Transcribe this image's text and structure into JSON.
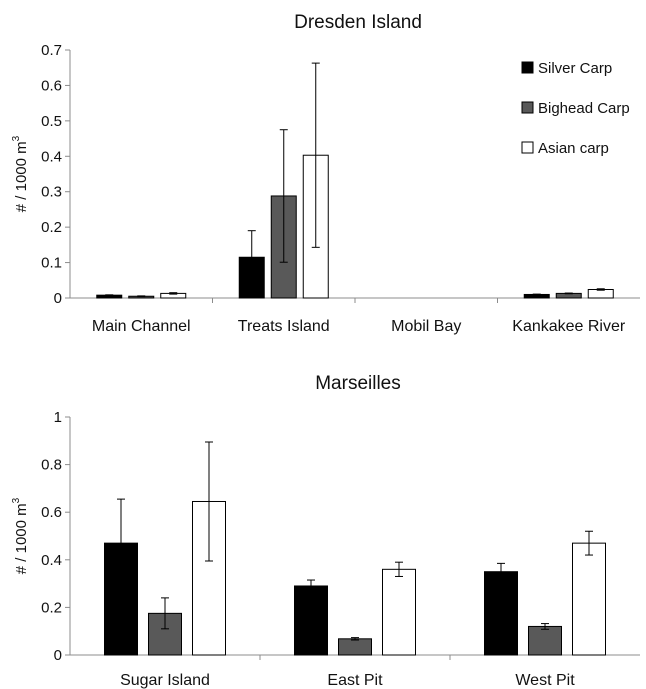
{
  "chart_data": [
    {
      "type": "bar",
      "title": "Dresden Island",
      "ylabel": "# / 1000 m",
      "ylabel_sup": "3",
      "xlabel": "",
      "ylim": [
        0,
        0.7
      ],
      "yticks": [
        "0",
        "0.1",
        "0.2",
        "0.3",
        "0.4",
        "0.5",
        "0.6",
        "0.7"
      ],
      "categories": [
        "Main Channel",
        "Treats Island",
        "Mobil Bay",
        "Kankakee River"
      ],
      "legend_position": "top-right",
      "series": [
        {
          "name": "Silver Carp",
          "color": "#000000",
          "values": [
            0.008,
            0.115,
            0,
            0.01
          ],
          "error": [
            0.001,
            0.075,
            0,
            0.001
          ]
        },
        {
          "name": "Bighead Carp",
          "color": "#595959",
          "values": [
            0.005,
            0.288,
            0,
            0.013
          ],
          "error": [
            0.001,
            0.187,
            0,
            0.001
          ]
        },
        {
          "name": "Asian carp",
          "color": "#ffffff",
          "values": [
            0.013,
            0.403,
            0,
            0.024
          ],
          "error": [
            0.002,
            0.26,
            0,
            0.002
          ]
        }
      ]
    },
    {
      "type": "bar",
      "title": "Marseilles",
      "ylabel": "# / 1000 m",
      "ylabel_sup": "3",
      "xlabel": "",
      "ylim": [
        0,
        1
      ],
      "yticks": [
        "0",
        "0.2",
        "0.4",
        "0.6",
        "0.8",
        "1"
      ],
      "categories": [
        "Sugar Island",
        "East Pit",
        "West Pit"
      ],
      "series": [
        {
          "name": "Silver Carp",
          "color": "#000000",
          "values": [
            0.47,
            0.29,
            0.35
          ],
          "error": [
            0.185,
            0.025,
            0.035
          ]
        },
        {
          "name": "Bighead Carp",
          "color": "#595959",
          "values": [
            0.175,
            0.068,
            0.12
          ],
          "error": [
            0.065,
            0.005,
            0.012
          ]
        },
        {
          "name": "Asian carp",
          "color": "#ffffff",
          "values": [
            0.645,
            0.36,
            0.47
          ],
          "error": [
            0.25,
            0.03,
            0.05
          ]
        }
      ]
    }
  ]
}
